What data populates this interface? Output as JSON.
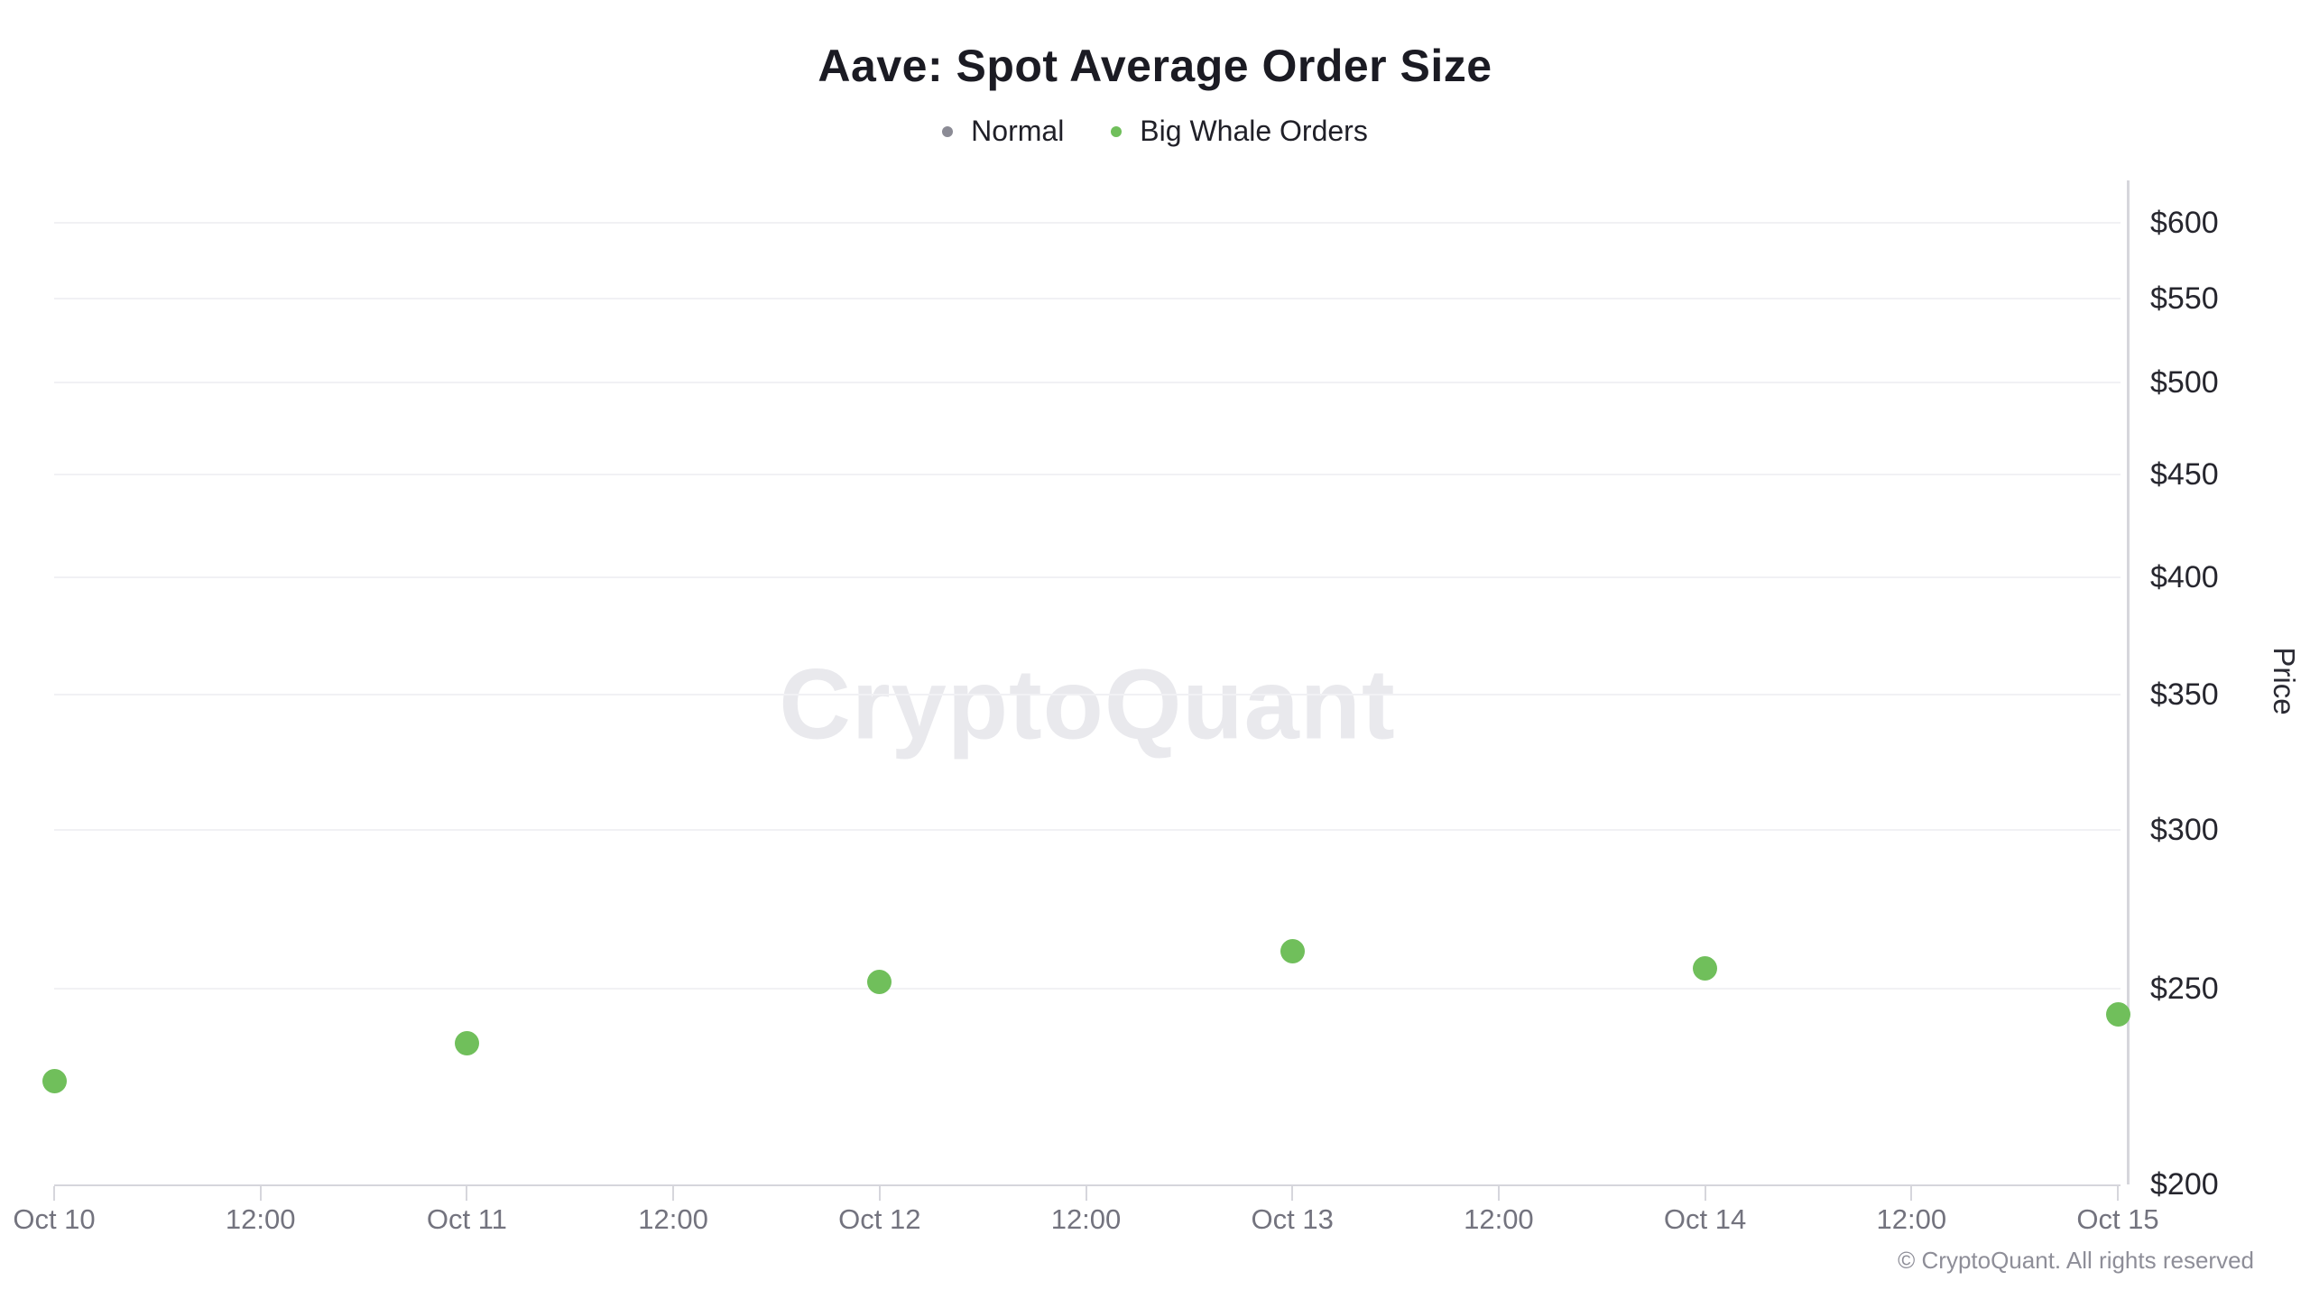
{
  "chart": {
    "title": "Aave: Spot Average Order Size",
    "legend": [
      {
        "label": "Normal",
        "color": "#8b8b95"
      },
      {
        "label": "Big Whale Orders",
        "color": "#70bf5b"
      }
    ],
    "watermark": "CryptoQuant",
    "footer": "© CryptoQuant. All rights reserved"
  },
  "chart_data": {
    "type": "scatter",
    "title": "Aave: Spot Average Order Size",
    "y_axis_label": "Price",
    "y_scale": "log",
    "y_tick_prefix": "$",
    "y_ticks": [
      200,
      250,
      300,
      350,
      400,
      450,
      500,
      550,
      600
    ],
    "ylim": [
      200,
      630
    ],
    "x_ticks": [
      "Oct 10",
      "12:00",
      "Oct 11",
      "12:00",
      "Oct 12",
      "12:00",
      "Oct 13",
      "12:00",
      "Oct 14",
      "12:00",
      "Oct 15"
    ],
    "grid": "horizontal",
    "legend_position": "top",
    "series": [
      {
        "name": "Normal",
        "color": "#8b8b95",
        "points": []
      },
      {
        "name": "Big Whale Orders",
        "color": "#70bf5b",
        "points": [
          {
            "x": "Oct 10",
            "price": 225
          },
          {
            "x": "Oct 11",
            "price": 235
          },
          {
            "x": "Oct 12",
            "price": 252
          },
          {
            "x": "Oct 13",
            "price": 261
          },
          {
            "x": "Oct 14",
            "price": 256
          },
          {
            "x": "Oct 15",
            "price": 243
          }
        ]
      }
    ]
  }
}
